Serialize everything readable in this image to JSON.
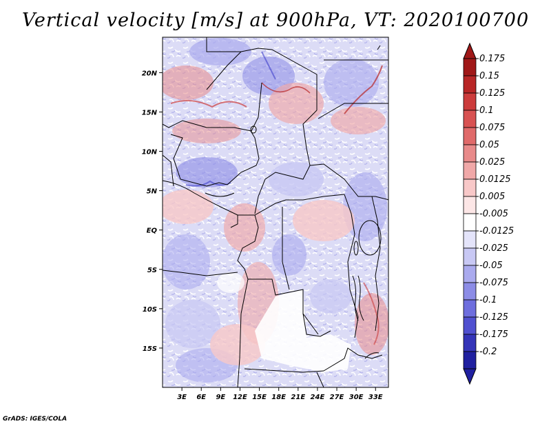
{
  "title": "Vertical velocity [m/s] at 900hPa, VT: 2020100700",
  "credit": "GrADS: IGES/COLA",
  "map": {
    "lon_range": [
      0,
      35
    ],
    "lat_range": [
      -20,
      24.5
    ],
    "lat_ticks": [
      {
        "value": 20,
        "label": "20N"
      },
      {
        "value": 15,
        "label": "15N"
      },
      {
        "value": 10,
        "label": "10N"
      },
      {
        "value": 5,
        "label": "5N"
      },
      {
        "value": 0,
        "label": "EQ"
      },
      {
        "value": -5,
        "label": "5S"
      },
      {
        "value": -10,
        "label": "10S"
      },
      {
        "value": -15,
        "label": "15S"
      }
    ],
    "lon_ticks": [
      {
        "value": 3,
        "label": "3E"
      },
      {
        "value": 6,
        "label": "6E"
      },
      {
        "value": 9,
        "label": "9E"
      },
      {
        "value": 12,
        "label": "12E"
      },
      {
        "value": 15,
        "label": "15E"
      },
      {
        "value": 18,
        "label": "18E"
      },
      {
        "value": 21,
        "label": "21E"
      },
      {
        "value": 24,
        "label": "24E"
      },
      {
        "value": 27,
        "label": "27E"
      },
      {
        "value": 30,
        "label": "30E"
      },
      {
        "value": 33,
        "label": "33E"
      }
    ]
  },
  "colorbar": {
    "levels": [
      {
        "label": "0.175",
        "color": "#a01818"
      },
      {
        "label": "0.15",
        "color": "#b82626"
      },
      {
        "label": "0.125",
        "color": "#cc3c3c"
      },
      {
        "label": "0.1",
        "color": "#d85252"
      },
      {
        "label": "0.075",
        "color": "#e06a6a"
      },
      {
        "label": "0.05",
        "color": "#e88a8a"
      },
      {
        "label": "0.025",
        "color": "#f0a8a8"
      },
      {
        "label": "0.0125",
        "color": "#f8c8c8"
      },
      {
        "label": "0.005",
        "color": "#fce6e6"
      },
      {
        "label": "-0.005",
        "color": "#ffffff"
      },
      {
        "label": "-0.0125",
        "color": "#e4e4fa"
      },
      {
        "label": "-0.025",
        "color": "#c8c8f4"
      },
      {
        "label": "-0.05",
        "color": "#aaaaee"
      },
      {
        "label": "-0.075",
        "color": "#8c8ce6"
      },
      {
        "label": "-0.1",
        "color": "#6e6ede"
      },
      {
        "label": "-0.125",
        "color": "#5050d0"
      },
      {
        "label": "-0.175",
        "color": "#3434b8"
      },
      {
        "label": "-0.2",
        "color": "#2020a0"
      }
    ],
    "top_triangle_color": "#a01818",
    "bottom_triangle_color": "#2020a0"
  }
}
